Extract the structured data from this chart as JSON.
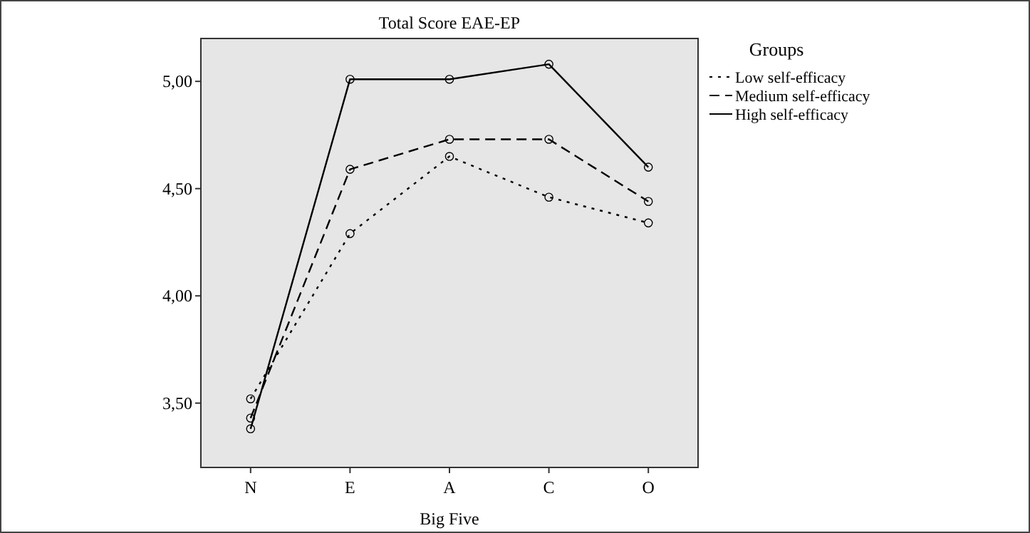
{
  "chart_data": {
    "type": "line",
    "title": "Total Score EAE-EP",
    "xlabel": "Big Five",
    "legend_title": "Groups",
    "categories": [
      "N",
      "E",
      "A",
      "C",
      "O"
    ],
    "series": [
      {
        "name": "Low self-efficacy",
        "color": "#000000",
        "line_style": "dotted",
        "values": [
          3.52,
          4.29,
          4.65,
          4.46,
          4.34
        ]
      },
      {
        "name": "Medium self-efficacy",
        "color": "#000000",
        "line_style": "dashed",
        "values": [
          3.43,
          4.59,
          4.73,
          4.73,
          4.44
        ]
      },
      {
        "name": "High self-efficacy",
        "color": "#000000",
        "line_style": "solid",
        "values": [
          3.38,
          5.01,
          5.01,
          5.08,
          4.6
        ]
      }
    ],
    "ylim": [
      3.2,
      5.2
    ],
    "yticks": [
      {
        "value": 3.5,
        "label": "3,50"
      },
      {
        "value": 4,
        "label": "4,00"
      },
      {
        "value": 4.5,
        "label": "4,50"
      },
      {
        "value": 5,
        "label": "5,00"
      }
    ],
    "marker": "circle",
    "grid": false,
    "legend": "top right"
  }
}
